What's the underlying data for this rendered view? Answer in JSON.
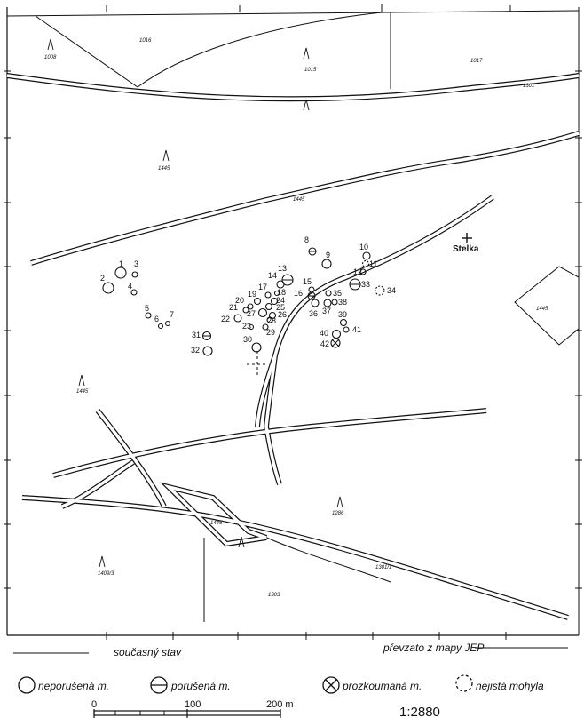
{
  "map": {
    "ink_color": "#111111",
    "paper_color": "#ffffff",
    "place": {
      "name": "Stelka"
    },
    "parcel_numbers": [
      "1008",
      "1016",
      "1015",
      "1017",
      "1445",
      "1445",
      "1445",
      "1445",
      "1286",
      "1409/3",
      "1303",
      "1301/1",
      "1301",
      "1445"
    ],
    "barrows": [
      {
        "n": "1",
        "status": "intact"
      },
      {
        "n": "2",
        "status": "intact"
      },
      {
        "n": "3",
        "status": "intact"
      },
      {
        "n": "4",
        "status": "intact"
      },
      {
        "n": "5",
        "status": "intact"
      },
      {
        "n": "6",
        "status": "intact"
      },
      {
        "n": "7",
        "status": "intact"
      },
      {
        "n": "8",
        "status": "damaged"
      },
      {
        "n": "9",
        "status": "intact"
      },
      {
        "n": "10",
        "status": "intact"
      },
      {
        "n": "11",
        "status": "uncertain"
      },
      {
        "n": "12",
        "status": "intact"
      },
      {
        "n": "13",
        "status": "damaged"
      },
      {
        "n": "14",
        "status": "intact"
      },
      {
        "n": "15",
        "status": "intact"
      },
      {
        "n": "16",
        "status": "damaged"
      },
      {
        "n": "17",
        "status": "intact"
      },
      {
        "n": "18",
        "status": "intact"
      },
      {
        "n": "19",
        "status": "intact"
      },
      {
        "n": "20",
        "status": "intact"
      },
      {
        "n": "21",
        "status": "intact"
      },
      {
        "n": "22",
        "status": "intact"
      },
      {
        "n": "23",
        "status": "intact"
      },
      {
        "n": "24",
        "status": "intact"
      },
      {
        "n": "25",
        "status": "intact"
      },
      {
        "n": "26",
        "status": "intact"
      },
      {
        "n": "27",
        "status": "intact"
      },
      {
        "n": "28",
        "status": "intact"
      },
      {
        "n": "29",
        "status": "intact"
      },
      {
        "n": "30",
        "status": "intact"
      },
      {
        "n": "31",
        "status": "damaged"
      },
      {
        "n": "32",
        "status": "intact"
      },
      {
        "n": "33",
        "status": "damaged"
      },
      {
        "n": "34",
        "status": "uncertain"
      },
      {
        "n": "35",
        "status": "intact"
      },
      {
        "n": "36",
        "status": "intact"
      },
      {
        "n": "37",
        "status": "intact"
      },
      {
        "n": "38",
        "status": "intact"
      },
      {
        "n": "39",
        "status": "intact"
      },
      {
        "n": "40",
        "status": "intact"
      },
      {
        "n": "41",
        "status": "intact"
      },
      {
        "n": "42",
        "status": "excavated"
      }
    ]
  },
  "footer": {
    "current_state": "současný stav",
    "source": "převzato z mapy JEP"
  },
  "legend": {
    "intact": "neporušená m.",
    "damaged": "porušená m.",
    "excavated": "prozkoumaná m.",
    "uncertain": "nejistá mohyla"
  },
  "scale": {
    "ticks": [
      "0",
      "100",
      "200 m"
    ],
    "ratio": "1:2880"
  }
}
